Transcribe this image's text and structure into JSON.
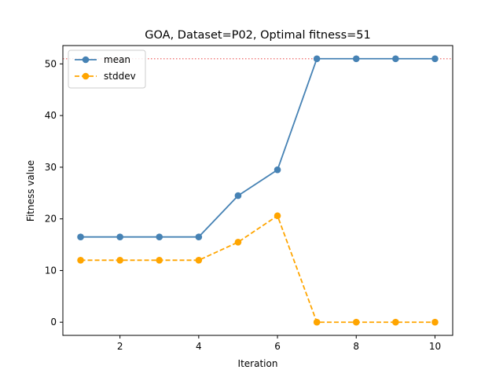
{
  "chart_data": {
    "type": "line",
    "title": "GOA, Dataset=P02, Optimal fitness=51",
    "xlabel": "Iteration",
    "ylabel": "Fitness value",
    "xlim": [
      0.55,
      10.45
    ],
    "ylim": [
      -2.55,
      53.55
    ],
    "xticks": [
      2,
      4,
      6,
      8,
      10
    ],
    "yticks": [
      0,
      10,
      20,
      30,
      40,
      50
    ],
    "x": [
      1,
      2,
      3,
      4,
      5,
      6,
      7,
      8,
      9,
      10
    ],
    "series": [
      {
        "name": "mean",
        "values": [
          16.5,
          16.5,
          16.5,
          16.5,
          24.5,
          29.5,
          51,
          51,
          51,
          51
        ],
        "color": "#4682b4",
        "style": "solid",
        "marker": "circle"
      },
      {
        "name": "stddev",
        "values": [
          12,
          12,
          12,
          12,
          15.5,
          20.6,
          0,
          0,
          0,
          0
        ],
        "color": "#ffa500",
        "style": "dashed",
        "marker": "circle"
      }
    ],
    "reference_line": {
      "y": 51,
      "color": "#f08080",
      "style": "dotted"
    },
    "grid": false,
    "legend_position": "top-left"
  }
}
